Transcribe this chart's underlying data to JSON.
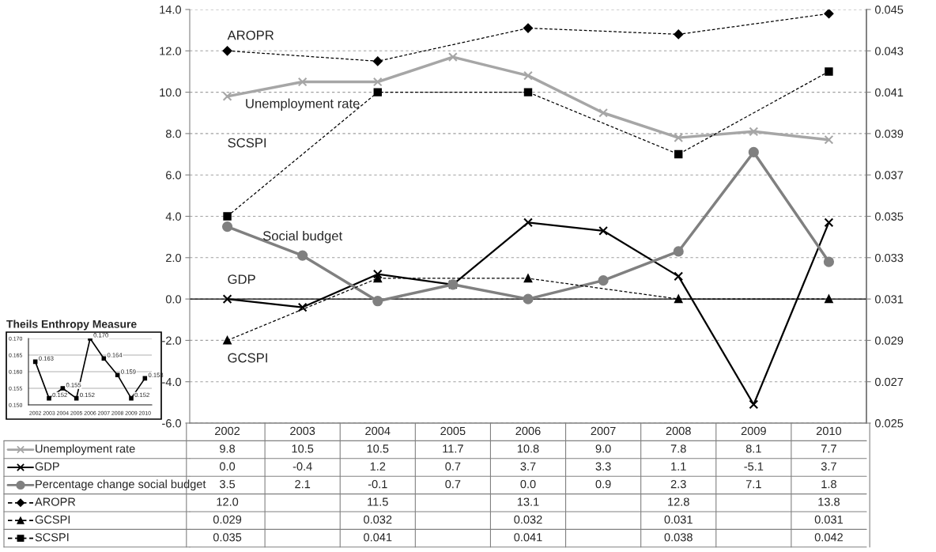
{
  "chart_data": [
    {
      "type": "line",
      "categories": [
        "2002",
        "2003",
        "2004",
        "2005",
        "2006",
        "2007",
        "2008",
        "2009",
        "2010"
      ],
      "series": [
        {
          "name": "Unemployment rate",
          "color": "#a6a6a6",
          "marker": "cross",
          "line_style": "solid",
          "values": [
            9.8,
            10.5,
            10.5,
            11.7,
            10.8,
            9.0,
            7.8,
            8.1,
            7.7
          ],
          "value_labels": [
            "9.8",
            "10.5",
            "10.5",
            "11.7",
            "10.8",
            "9.0",
            "7.8",
            "8.1",
            "7.7"
          ]
        },
        {
          "name": "GDP",
          "color": "#000000",
          "marker": "cross",
          "line_style": "solid",
          "values": [
            0.0,
            -0.4,
            1.2,
            0.7,
            3.7,
            3.3,
            1.1,
            -5.1,
            3.7
          ],
          "value_labels": [
            "0.0",
            "-0.4",
            "1.2",
            "0.7",
            "3.7",
            "3.3",
            "1.1",
            "-5.1",
            "3.7"
          ]
        },
        {
          "name": "Percentage change social budget",
          "color": "#808080",
          "marker": "circle",
          "line_style": "solid",
          "values": [
            3.5,
            2.1,
            -0.1,
            0.7,
            0.0,
            0.9,
            2.3,
            7.1,
            1.8
          ],
          "value_labels": [
            "3.5",
            "2.1",
            "-0.1",
            "0.7",
            "0.0",
            "0.9",
            "2.3",
            "7.1",
            "1.8"
          ]
        },
        {
          "name": "AROPR",
          "color": "#000000",
          "marker": "diamond",
          "line_style": "dashed",
          "values": [
            12.0,
            null,
            11.5,
            null,
            13.1,
            null,
            12.8,
            null,
            13.8
          ],
          "value_labels": [
            "12.0",
            null,
            "11.5",
            null,
            "13.1",
            null,
            "12.8",
            null,
            "13.8"
          ]
        },
        {
          "name": "GCSPI",
          "color": "#000000",
          "marker": "triangle",
          "line_style": "dashed",
          "axis": "y2",
          "values": [
            0.029,
            null,
            0.032,
            null,
            0.032,
            null,
            0.031,
            null,
            0.031
          ],
          "value_labels": [
            "0.029",
            null,
            "0.032",
            null,
            "0.032",
            null,
            "0.031",
            null,
            "0.031"
          ]
        },
        {
          "name": "SCSPI",
          "color": "#000000",
          "marker": "square",
          "line_style": "dashed",
          "axis": "y2",
          "values": [
            0.035,
            null,
            0.041,
            null,
            0.041,
            null,
            0.038,
            null,
            0.042
          ],
          "value_labels": [
            "0.035",
            null,
            "0.041",
            null,
            "0.041",
            null,
            "0.038",
            null,
            "0.042"
          ]
        }
      ],
      "legend": "bottom left",
      "ylim": [
        -6,
        14
      ],
      "yticks": [
        {
          "value": -6,
          "label": "-6.0"
        },
        {
          "value": -4,
          "label": "-4.0"
        },
        {
          "value": -2,
          "label": "-2.0"
        },
        {
          "value": 0,
          "label": "0.0"
        },
        {
          "value": 2,
          "label": "2.0"
        },
        {
          "value": 4,
          "label": "4.0"
        },
        {
          "value": 6,
          "label": "6.0"
        },
        {
          "value": 8,
          "label": "8.0"
        },
        {
          "value": 10,
          "label": "10.0"
        },
        {
          "value": 12,
          "label": "12.0"
        },
        {
          "value": 14,
          "label": "14.0"
        }
      ],
      "y2lim": [
        0.025,
        0.045
      ],
      "y2ticks": [
        0.025,
        0.027,
        0.029,
        0.031,
        0.033,
        0.035,
        0.037,
        0.039,
        0.041,
        0.043,
        0.045
      ],
      "grid": "y",
      "ref_lines": [
        {
          "axis": "y",
          "value": 0,
          "color": "#000000",
          "line_style": "solid"
        }
      ],
      "annotations": [
        "AROPR",
        "Unemployment rate",
        "SCSPI",
        "Social budget",
        "GDP",
        "GCSPI"
      ]
    },
    {
      "type": "line",
      "title": "Theils Enthropy Measure",
      "categories": [
        "2002",
        "2003",
        "2004",
        "2005",
        "2006",
        "2007",
        "2008",
        "2009",
        "2010"
      ],
      "values": [
        0.163,
        0.152,
        0.155,
        0.152,
        0.17,
        0.164,
        0.159,
        0.152,
        0.158
      ],
      "value_labels": [
        "0.163",
        "0.152",
        "0.155",
        "0.152",
        "0.170",
        "0.164",
        "0.159",
        "0.152",
        "0.158"
      ],
      "color": "#000000",
      "marker": "square",
      "line_style": "solid",
      "ylim": [
        0.15,
        0.17
      ],
      "yticks": [
        {
          "value": 0.15,
          "label": "0.150"
        },
        {
          "value": 0.155,
          "label": "0.155"
        },
        {
          "value": 0.16,
          "label": "0.160"
        },
        {
          "value": 0.165,
          "label": "0.165"
        },
        {
          "value": 0.17,
          "label": "0.170"
        }
      ],
      "grid": "y"
    }
  ]
}
